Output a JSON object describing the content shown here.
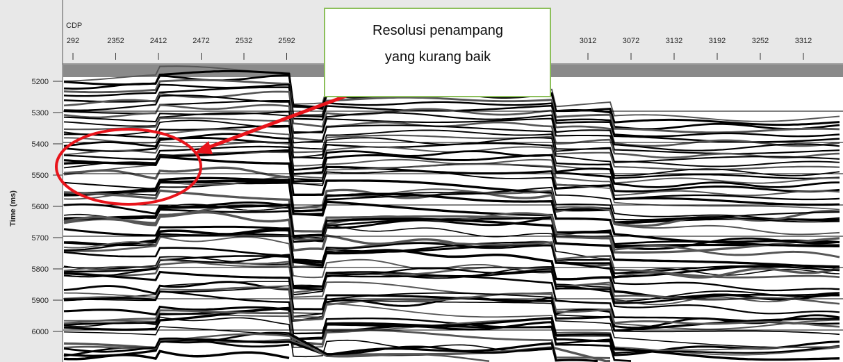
{
  "x_axis": {
    "label": "CDP",
    "ticks": [
      "292",
      "2352",
      "2412",
      "2472",
      "2532",
      "2592",
      "3012",
      "3072",
      "3132",
      "3192",
      "3252",
      "3312"
    ]
  },
  "y_axis": {
    "label": "Time (ms)",
    "ticks": [
      "5200",
      "5300",
      "5400",
      "5500",
      "5600",
      "5700",
      "5800",
      "5900",
      "6000"
    ]
  },
  "annotation": {
    "lines": [
      "Resolusi penampang",
      "yang kurang baik"
    ]
  }
}
